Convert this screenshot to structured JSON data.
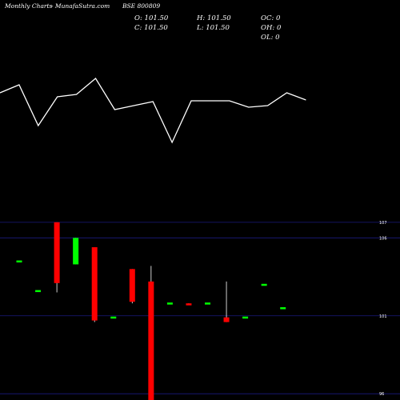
{
  "header": {
    "title": "Monthly Charts",
    "source": "- MunafaSutra.com",
    "symbol": "BSE 800809",
    "open": "O: 101.50",
    "close": "C: 101.50",
    "high": "H: 101.50",
    "low": "L: 101.50",
    "oc": "OC: 0",
    "oh": "OH: 0",
    "ol": "OL: 0"
  },
  "colors": {
    "background": "#000000",
    "text": "#ffffff",
    "up": "#00ff00",
    "down": "#ff0000",
    "grid": "#1a1a80",
    "line": "#ffffff",
    "wick": "#ffffff"
  },
  "chart_data": [
    {
      "type": "line",
      "series": [
        {
          "values": [
            6.2,
            7.2,
            2.1,
            5.7,
            6.0,
            8.0,
            4.1,
            4.6,
            5.1,
            0.0,
            5.2,
            5.2,
            5.2,
            4.4,
            4.6,
            6.2,
            5.3
          ]
        }
      ]
    },
    {
      "type": "candlestick",
      "ylim": [
        95.6,
        107.3
      ],
      "y_ticks": [
        107,
        106,
        101,
        96
      ],
      "candles": [
        {
          "open": 104.5,
          "high": 104.5,
          "low": 104.5,
          "close": 104.5
        },
        {
          "open": 102.6,
          "high": 102.6,
          "low": 102.6,
          "close": 102.6
        },
        {
          "open": 107.0,
          "high": 107.0,
          "low": 102.5,
          "close": 103.1
        },
        {
          "open": 104.3,
          "high": 106.0,
          "low": 104.3,
          "close": 106.0
        },
        {
          "open": 105.4,
          "high": 105.4,
          "low": 100.6,
          "close": 100.7
        },
        {
          "open": 100.9,
          "high": 100.9,
          "low": 100.9,
          "close": 100.9
        },
        {
          "open": 104.0,
          "high": 104.0,
          "low": 101.8,
          "close": 101.9
        },
        {
          "open": 103.2,
          "high": 104.2,
          "low": 95.6,
          "close": 95.6
        },
        {
          "open": 101.8,
          "high": 101.8,
          "low": 101.8,
          "close": 101.8
        },
        {
          "open": 101.8,
          "high": 101.8,
          "low": 101.7,
          "close": 101.7
        },
        {
          "open": 101.8,
          "high": 101.8,
          "low": 101.8,
          "close": 101.8
        },
        {
          "open": 100.9,
          "high": 103.2,
          "low": 100.6,
          "close": 100.6
        },
        {
          "open": 100.9,
          "high": 100.9,
          "low": 100.9,
          "close": 100.9
        },
        {
          "open": 103.0,
          "high": 103.0,
          "low": 103.0,
          "close": 103.0
        },
        {
          "open": 101.5,
          "high": 101.5,
          "low": 101.5,
          "close": 101.5
        }
      ]
    }
  ]
}
